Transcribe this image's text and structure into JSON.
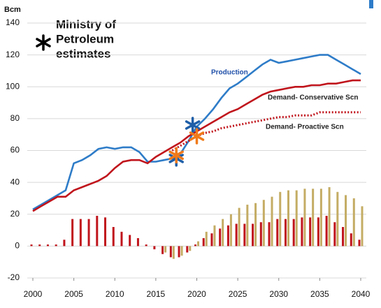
{
  "chart_data": {
    "type": "combo",
    "y_unit": "Bcm",
    "annotation": [
      "Ministry of",
      "Petroleum",
      "estimates"
    ],
    "x": [
      2000,
      2001,
      2002,
      2003,
      2004,
      2005,
      2006,
      2007,
      2008,
      2009,
      2010,
      2011,
      2012,
      2013,
      2014,
      2015,
      2016,
      2017,
      2018,
      2019,
      2020,
      2021,
      2022,
      2023,
      2024,
      2025,
      2026,
      2027,
      2028,
      2029,
      2030,
      2031,
      2032,
      2033,
      2034,
      2035,
      2036,
      2037,
      2038,
      2039,
      2040
    ],
    "xlim": [
      2000,
      2040
    ],
    "xticks": [
      2000,
      2005,
      2010,
      2015,
      2020,
      2025,
      2030,
      2035,
      2040
    ],
    "ylim": [
      -20,
      140
    ],
    "yticks": [
      -20,
      0,
      20,
      40,
      60,
      80,
      100,
      120,
      140
    ],
    "grid": true,
    "series": [
      {
        "type": "bar",
        "color": "#c0141c",
        "offset": -1,
        "values": [
          1,
          1,
          1,
          1,
          4,
          17,
          17,
          17,
          19,
          18,
          12,
          9,
          7,
          5,
          1,
          -2,
          -5,
          -7,
          -7,
          -4,
          1,
          5,
          8,
          11,
          13,
          14,
          14,
          14,
          15,
          15,
          17,
          17,
          17,
          18,
          18,
          18,
          19,
          15,
          12,
          8,
          4
        ]
      },
      {
        "type": "bar",
        "color": "#c4ac64",
        "offset": 1,
        "values": [
          null,
          null,
          null,
          null,
          null,
          null,
          null,
          null,
          null,
          null,
          null,
          null,
          null,
          null,
          null,
          null,
          -4,
          -8,
          -6,
          -3,
          3,
          9,
          13,
          17,
          20,
          24,
          26,
          27,
          29,
          31,
          34,
          35,
          35,
          36,
          36,
          36,
          37,
          34,
          32,
          30,
          25
        ]
      },
      {
        "type": "line",
        "name": "Production",
        "color": "#2e7cc8",
        "dash": false,
        "label_color": "#1f4fa8",
        "values": [
          23,
          26,
          29,
          32,
          35,
          52,
          54,
          57,
          61,
          62,
          61,
          62,
          62,
          59,
          53,
          53,
          54,
          55,
          58,
          66,
          75,
          80,
          86,
          93,
          99,
          102,
          106,
          110,
          114,
          117,
          115,
          116,
          117,
          118,
          119,
          120,
          120,
          117,
          114,
          111,
          108
        ]
      },
      {
        "type": "line",
        "name": "Demand- Conservative Scn",
        "color": "#c0141c",
        "dash": false,
        "label_color": "#222222",
        "values": [
          22,
          25,
          28,
          31,
          31,
          35,
          37,
          39,
          41,
          44,
          49,
          53,
          54,
          54,
          52,
          56,
          59,
          62,
          65,
          69,
          72,
          75,
          78,
          81,
          84,
          86,
          89,
          92,
          95,
          97,
          98,
          99,
          100,
          100,
          101,
          101,
          102,
          102,
          103,
          104,
          104
        ]
      },
      {
        "type": "line",
        "name": "Demand- Proactive Scn",
        "color": "#c0141c",
        "dash": true,
        "label_color": "#222222",
        "values": [
          null,
          null,
          null,
          null,
          null,
          null,
          null,
          null,
          null,
          null,
          null,
          null,
          null,
          null,
          null,
          null,
          null,
          60,
          63,
          66,
          69,
          71,
          72,
          74,
          75,
          76,
          77,
          78,
          79,
          80,
          81,
          81,
          82,
          82,
          82,
          84,
          84,
          84,
          84,
          84,
          84
        ]
      },
      {
        "type": "scatter",
        "color": "#1f5fa8",
        "x": [
          2017.5,
          2019.5
        ],
        "values": [
          55,
          76
        ]
      },
      {
        "type": "scatter",
        "color": "#f07a1a",
        "x": [
          2017.5,
          2020
        ],
        "values": [
          57,
          69
        ]
      }
    ]
  }
}
